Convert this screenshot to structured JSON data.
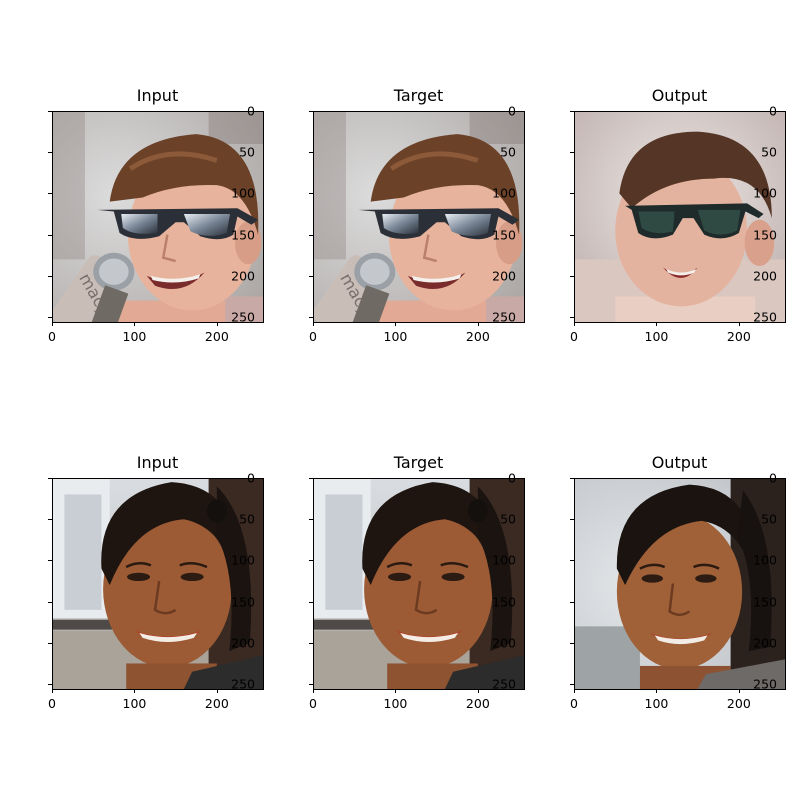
{
  "chart_data": [
    {
      "type": "image",
      "title": "Input",
      "row": 1,
      "scene": "man-sunglasses-mic",
      "xticks": [
        "0",
        "100",
        "200"
      ],
      "yticks": [
        "0",
        "50",
        "100",
        "150",
        "200",
        "250"
      ],
      "xlim": [
        0,
        256
      ],
      "ylim": [
        256,
        0
      ]
    },
    {
      "type": "image",
      "title": "Target",
      "row": 1,
      "scene": "man-sunglasses-mic",
      "xticks": [
        "0",
        "100",
        "200"
      ],
      "yticks": [
        "0",
        "50",
        "100",
        "150",
        "200",
        "250"
      ],
      "xlim": [
        0,
        256
      ],
      "ylim": [
        256,
        0
      ]
    },
    {
      "type": "image",
      "title": "Output",
      "row": 1,
      "scene": "man-sunglasses-generated",
      "xticks": [
        "0",
        "100",
        "200"
      ],
      "yticks": [
        "0",
        "50",
        "100",
        "150",
        "200",
        "250"
      ],
      "xlim": [
        0,
        256
      ],
      "ylim": [
        256,
        0
      ]
    },
    {
      "type": "image",
      "title": "Input",
      "row": 2,
      "scene": "woman-smiling",
      "xticks": [
        "0",
        "100",
        "200"
      ],
      "yticks": [
        "0",
        "50",
        "100",
        "150",
        "200",
        "250"
      ],
      "xlim": [
        0,
        256
      ],
      "ylim": [
        256,
        0
      ]
    },
    {
      "type": "image",
      "title": "Target",
      "row": 2,
      "scene": "woman-smiling",
      "xticks": [
        "0",
        "100",
        "200"
      ],
      "yticks": [
        "0",
        "50",
        "100",
        "150",
        "200",
        "250"
      ],
      "xlim": [
        0,
        256
      ],
      "ylim": [
        256,
        0
      ]
    },
    {
      "type": "image",
      "title": "Output",
      "row": 2,
      "scene": "woman-smiling-generated",
      "xticks": [
        "0",
        "100",
        "200"
      ],
      "yticks": [
        "0",
        "50",
        "100",
        "150",
        "200",
        "250"
      ],
      "xlim": [
        0,
        256
      ],
      "ylim": [
        256,
        0
      ]
    }
  ]
}
